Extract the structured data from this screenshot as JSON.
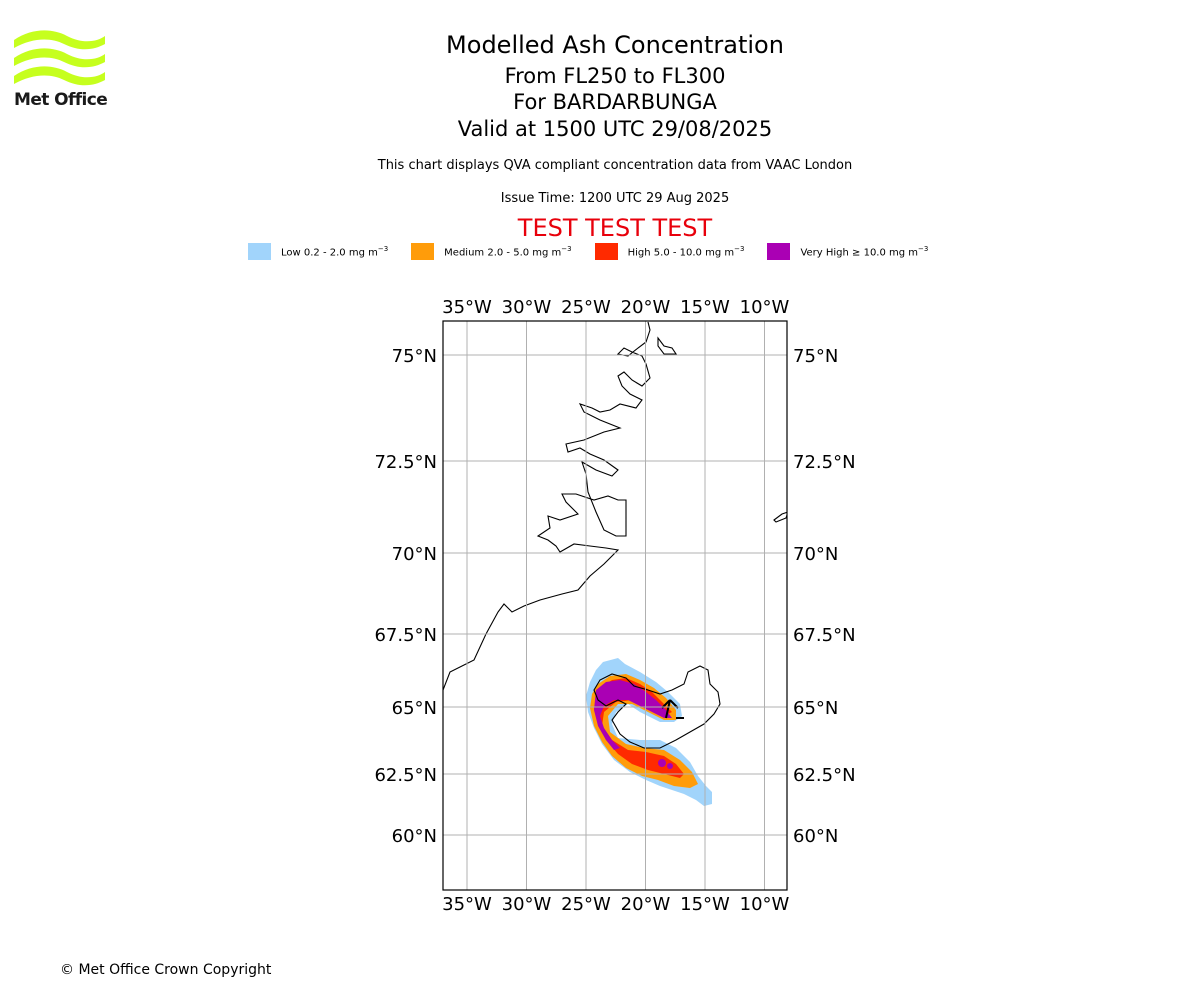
{
  "brand": {
    "name": "Met Office",
    "logo_color": "#c6ff1e"
  },
  "title": {
    "line1": "Modelled Ash Concentration",
    "line2": "From FL250 to FL300",
    "line3": "For BARDARBUNGA",
    "line4": "Valid at 1500 UTC 29/08/2025"
  },
  "description": "This chart displays QVA compliant concentration data from VAAC London",
  "issue_time": "Issue Time: 1200 UTC 29 Aug 2025",
  "test_banner": "TEST TEST TEST",
  "legend": [
    {
      "label": "Low 0.2 - 2.0 mg m",
      "unit_exp": "−3",
      "color": "#a1d4fb"
    },
    {
      "label": "Medium 2.0 - 5.0 mg m",
      "unit_exp": "−3",
      "color": "#ff9c0a"
    },
    {
      "label": "High 5.0 - 10.0 mg m",
      "unit_exp": "−3",
      "color": "#ff2a00"
    },
    {
      "label": "Very High  ≥  10.0 mg m",
      "unit_exp": "−3",
      "color": "#aa00b4"
    }
  ],
  "map": {
    "lon_ticks": [
      "35°W",
      "30°W",
      "25°W",
      "20°W",
      "15°W",
      "10°W"
    ],
    "lat_ticks": [
      "75°N",
      "72.5°N",
      "70°N",
      "67.5°N",
      "65°N",
      "62.5°N",
      "60°N"
    ],
    "lat_values": [
      75,
      72.5,
      70,
      67.5,
      65,
      62.5,
      60
    ],
    "lon_values": [
      -35,
      -30,
      -25,
      -20,
      -15,
      -10
    ]
  },
  "copyright": "© Met Office Crown Copyright"
}
